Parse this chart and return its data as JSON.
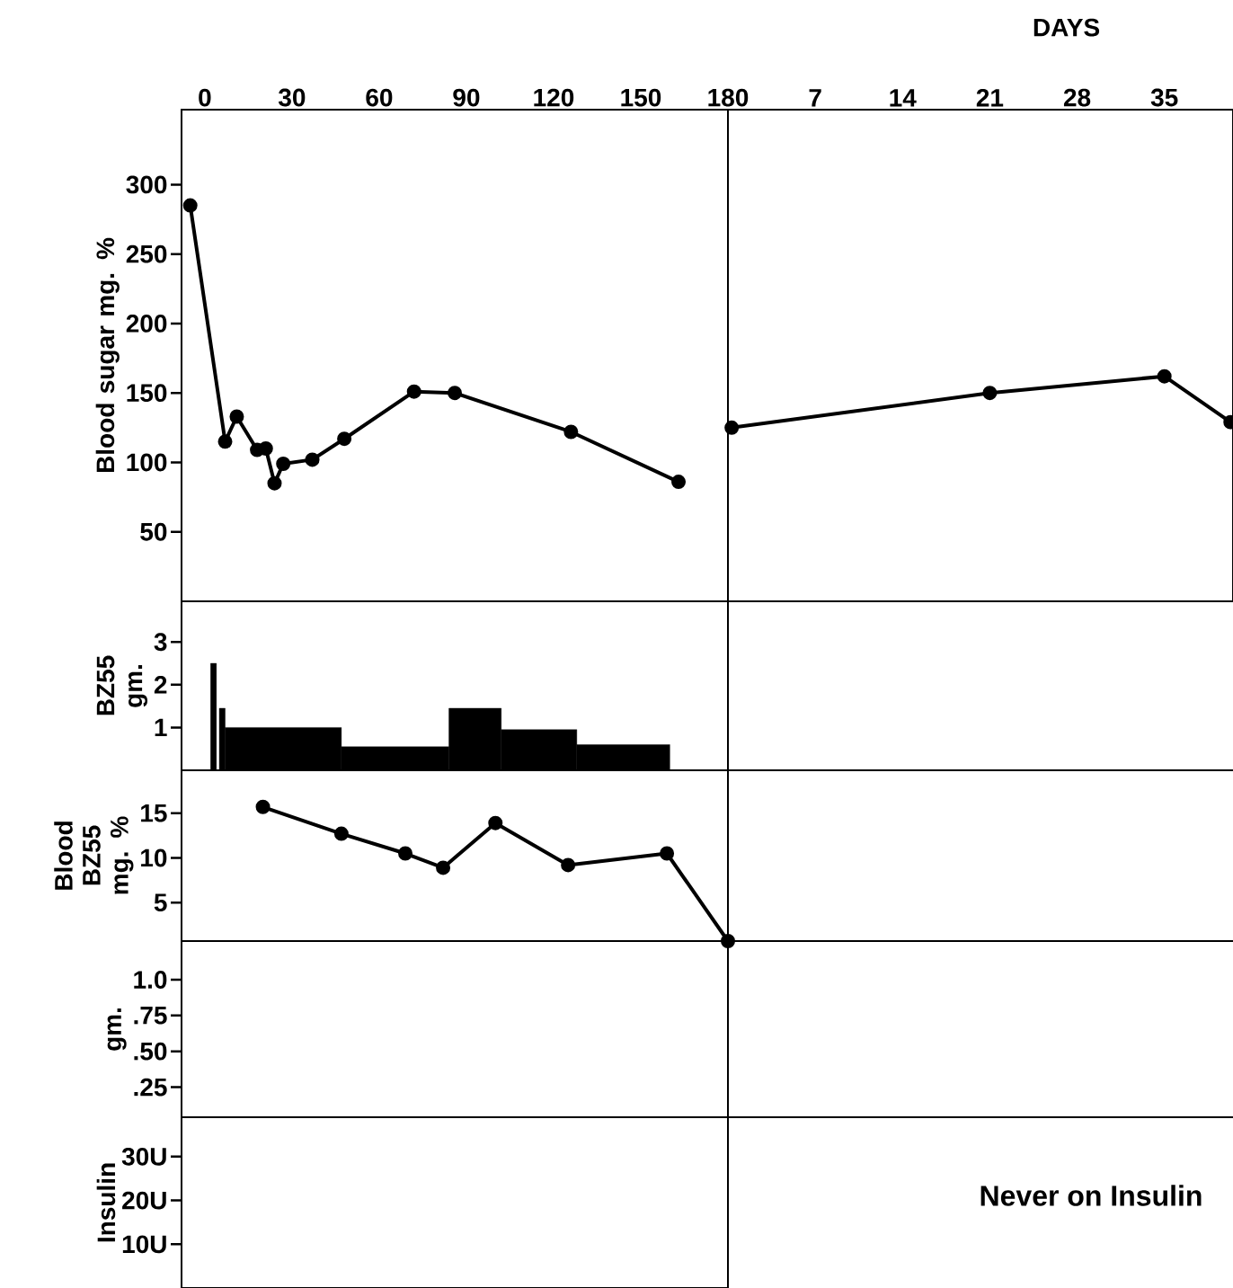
{
  "chart_data": [
    {
      "type": "line",
      "ylabel": "Blood sugar mg. %",
      "xlim": [
        -8,
        180
      ],
      "xticks": [
        0,
        30,
        60,
        90,
        120,
        150,
        180
      ],
      "ylim": [
        0,
        354
      ],
      "yticks": [
        50,
        100,
        150,
        200,
        250,
        300
      ],
      "marker": "circle",
      "series": [
        {
          "color": "#000000",
          "x": [
            -5,
            7,
            11,
            18,
            21,
            24,
            27,
            37,
            48,
            72,
            86,
            126,
            163
          ],
          "values": [
            285,
            115,
            133,
            109,
            110,
            85,
            99,
            102,
            117,
            151,
            150,
            122,
            86
          ]
        }
      ]
    },
    {
      "type": "line",
      "xlabel": "DAYS",
      "xlim": [
        0,
        40.5
      ],
      "xticks": [
        7,
        14,
        21,
        28,
        35
      ],
      "ylim": [
        0,
        354
      ],
      "tick_labels": "x",
      "marker": "circle",
      "series": [
        {
          "color": "#000000",
          "x": [
            0.3,
            21,
            35,
            40.3
          ],
          "values": [
            125,
            150,
            162,
            129
          ]
        }
      ]
    },
    {
      "type": "histogram",
      "ylabel": "BZ55 gm.",
      "xlim": [
        -8,
        180
      ],
      "ylim": [
        0,
        3.95
      ],
      "yticks": [
        1,
        2,
        3
      ],
      "tick_labels": "y",
      "color": "#000000",
      "bins": [
        2,
        4,
        5,
        7,
        47,
        84,
        102,
        128,
        160
      ],
      "values": [
        2.5,
        0,
        1.45,
        1.0,
        0.55,
        1.45,
        0.95,
        0.6
      ]
    },
    {
      "type": "line",
      "ylabel": "Blood BZ55 mg. %",
      "xlim": [
        -8,
        180
      ],
      "ylim": [
        0.7,
        19.8
      ],
      "yticks": [
        5,
        10,
        15
      ],
      "tick_labels": "y",
      "marker": "circle",
      "series": [
        {
          "color": "#000000",
          "x": [
            20,
            47,
            69,
            82,
            100,
            125,
            159,
            180
          ],
          "values": [
            15.7,
            12.7,
            10.5,
            8.9,
            13.9,
            9.2,
            10.5,
            0.7
          ]
        }
      ]
    },
    {
      "type": "line",
      "ylabel": "gm.",
      "xlim": [
        -8,
        180
      ],
      "ylim": [
        0.04,
        1.27
      ],
      "yticks": [
        {
          "value": 0.25,
          "label": ".25"
        },
        {
          "value": 0.5,
          "label": ".50"
        },
        {
          "value": 0.75,
          "label": ".75"
        },
        {
          "value": 1.0,
          "label": "1.0"
        }
      ],
      "tick_labels": "y"
    },
    {
      "type": "line",
      "ylabel": "Insulin",
      "xlim": [
        -8,
        180
      ],
      "ylim": [
        0,
        39
      ],
      "yticks": [
        {
          "value": 10,
          "label": "10U"
        },
        {
          "value": 20,
          "label": "20U"
        },
        {
          "value": 30,
          "label": "30U"
        }
      ],
      "tick_labels": "y"
    },
    {
      "type": "other",
      "annotations": [
        "Never on Insulin"
      ]
    }
  ]
}
